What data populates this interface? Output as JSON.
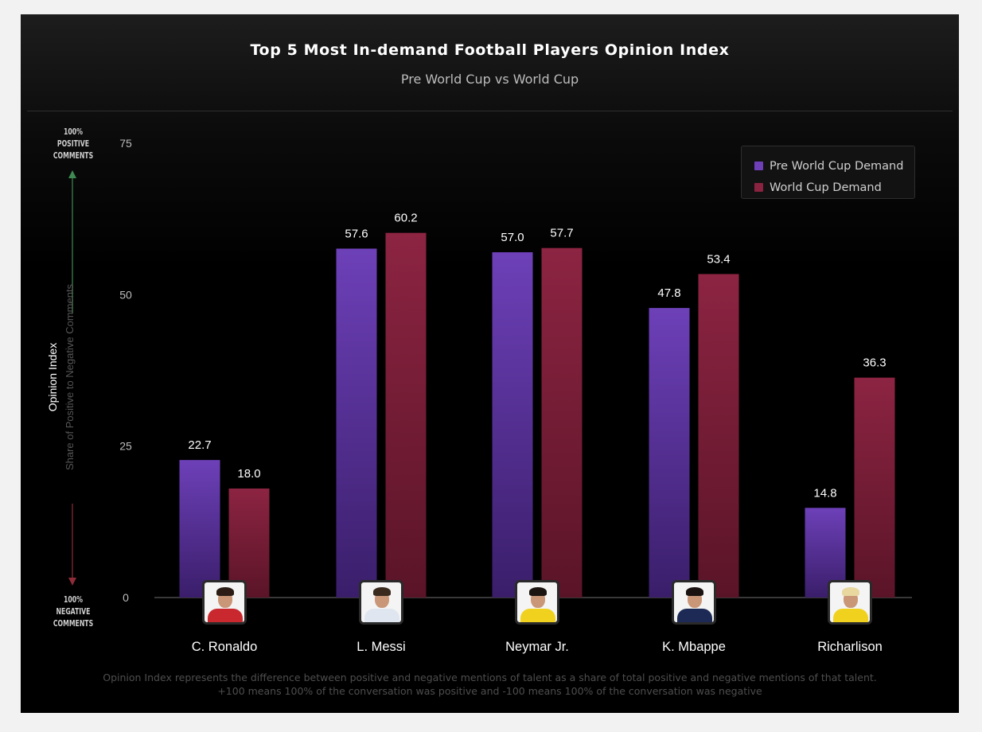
{
  "title": "Top 5 Most In-demand Football Players Opinion Index",
  "subtitle": "Pre World Cup vs World Cup",
  "y_axis": {
    "label": "Opinion Index",
    "sublabel": "Share of Positive to Negative Comments",
    "top_note": "100%\nPOSITIVE\nCOMMENTS",
    "bottom_note": "100%\nNEGATIVE\nCOMMENTS"
  },
  "legend": {
    "items": [
      {
        "label": "Pre World Cup Demand",
        "color": "#6f3fb8"
      },
      {
        "label": "World Cup Demand",
        "color": "#8a2340"
      }
    ]
  },
  "footnote": {
    "line1": "Opinion Index represents the difference between positive and negative mentions of talent as a share of total positive and negative mentions of that talent.",
    "line2": "+100 means 100% of the conversation was positive and -100 means 100% of the conversation was negative"
  },
  "players": [
    {
      "name": "C. Ronaldo",
      "shirt_color": "#c8282e",
      "hair_color": "#2b1d15"
    },
    {
      "name": "L. Messi",
      "shirt_color": "#dfe6f0",
      "hair_color": "#3a2a1e"
    },
    {
      "name": "Neymar Jr.",
      "shirt_color": "#f0d21e",
      "hair_color": "#1c1410"
    },
    {
      "name": "K. Mbappe",
      "shirt_color": "#1c2a55",
      "hair_color": "#1a1210"
    },
    {
      "name": "Richarlison",
      "shirt_color": "#f0d21e",
      "hair_color": "#e8d8a0"
    }
  ],
  "chart_data": {
    "type": "bar",
    "title": "Top 5 Most In-demand Football Players Opinion Index",
    "subtitle": "Pre World Cup vs World Cup",
    "ylabel": "Opinion Index",
    "categories": [
      "C. Ronaldo",
      "L. Messi",
      "Neymar Jr.",
      "K. Mbappe",
      "Richarlison"
    ],
    "series": [
      {
        "name": "Pre World Cup Demand",
        "values": [
          22.7,
          57.6,
          57.0,
          47.8,
          14.8
        ],
        "labels": [
          "22.7",
          "57.6",
          "57.0",
          "47.8",
          "14.8"
        ]
      },
      {
        "name": "World Cup Demand",
        "values": [
          18.0,
          60.2,
          57.7,
          53.4,
          36.3
        ],
        "labels": [
          "18.0",
          "60.2",
          "57.7",
          "53.4",
          "36.3"
        ]
      }
    ],
    "yticks": [
      0,
      25,
      50,
      75
    ],
    "ylim": [
      0,
      75
    ],
    "grid": false,
    "legend_position": "top-right"
  }
}
